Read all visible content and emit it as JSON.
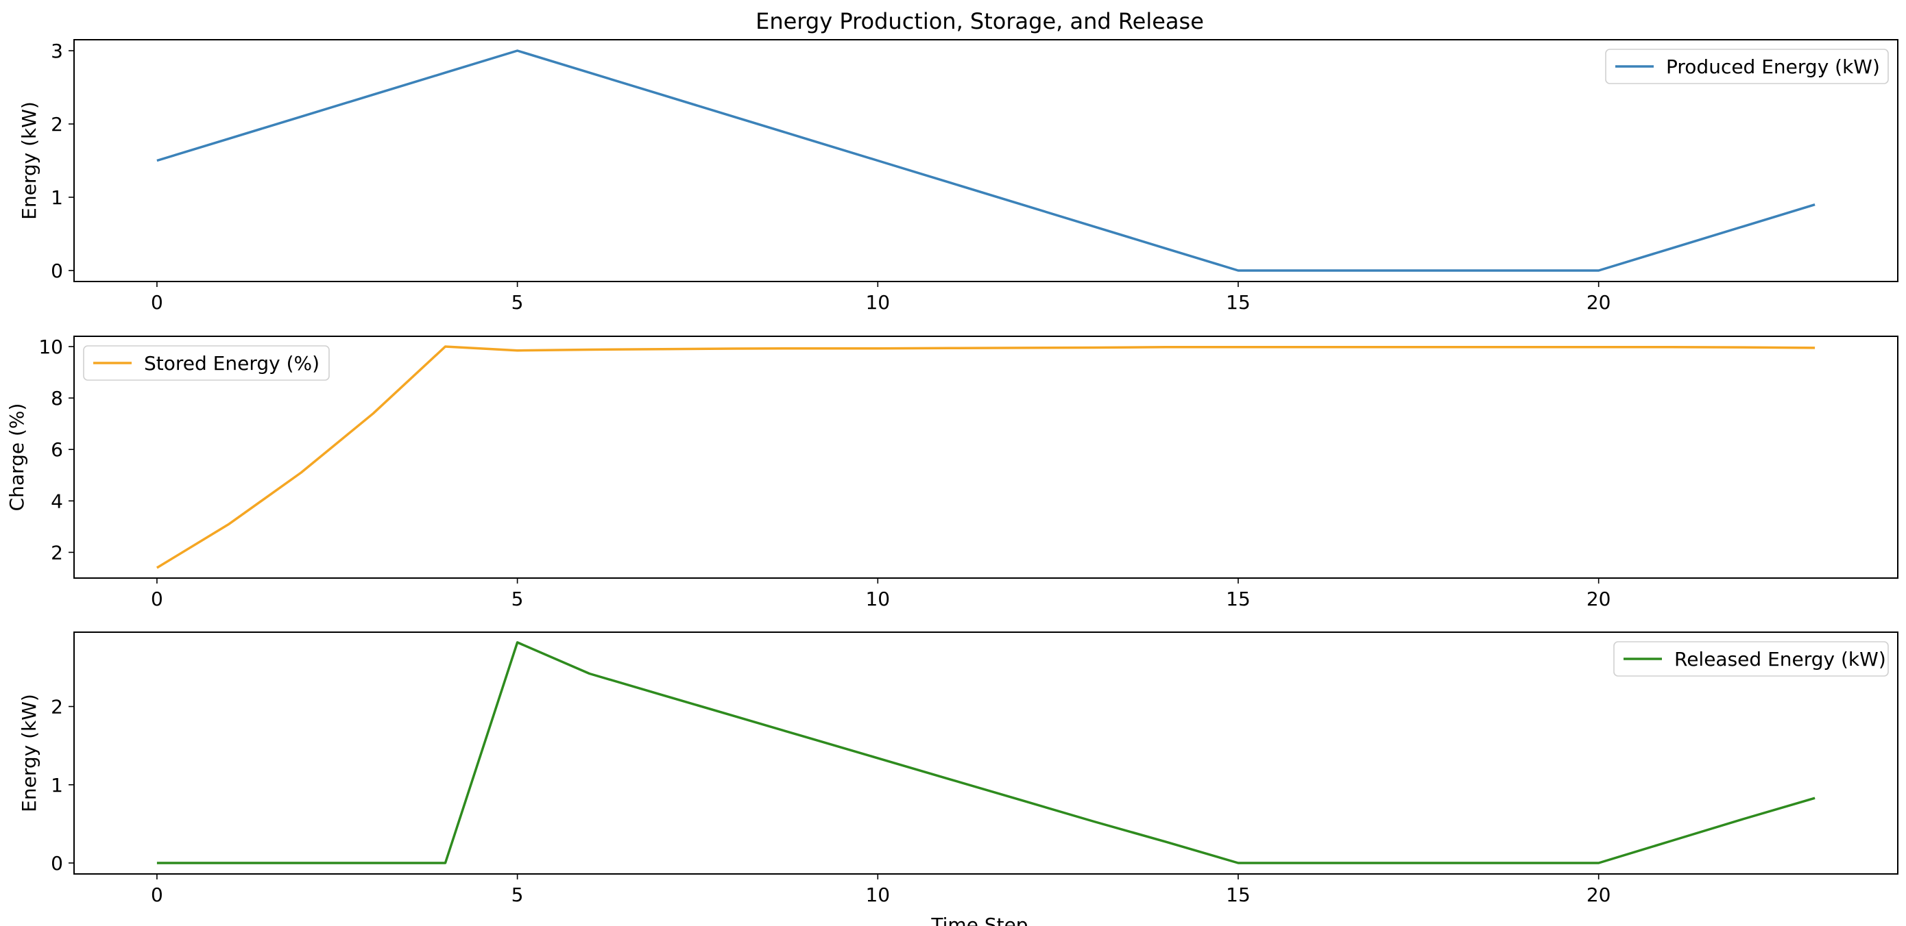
{
  "title": "Energy Production, Storage, and Release",
  "xlabel": "Time Step",
  "chart_data": [
    {
      "type": "line",
      "ylabel": "Energy (kW)",
      "xlim": [
        -1.15,
        24.15
      ],
      "ylim": [
        -0.15,
        3.15
      ],
      "xticks": [
        0,
        5,
        10,
        15,
        20
      ],
      "yticks": [
        0,
        1,
        2,
        3
      ],
      "legend_position": "top-right",
      "grid": false,
      "series": [
        {
          "name": "Produced Energy (kW)",
          "color": "#3b82b9",
          "x": [
            0,
            1,
            2,
            3,
            4,
            5,
            6,
            7,
            8,
            9,
            10,
            11,
            12,
            13,
            14,
            15,
            16,
            17,
            18,
            19,
            20,
            21,
            22,
            23
          ],
          "values": [
            1.5,
            1.8,
            2.1,
            2.4,
            2.7,
            3.0,
            2.7,
            2.4,
            2.1,
            1.8,
            1.5,
            1.2,
            0.9,
            0.6,
            0.3,
            0,
            0,
            0,
            0,
            0,
            0,
            0.3,
            0.6,
            0.9
          ]
        }
      ]
    },
    {
      "type": "line",
      "ylabel": "Charge (%)",
      "xlim": [
        -1.15,
        24.15
      ],
      "ylim": [
        1.0,
        10.4
      ],
      "xticks": [
        0,
        5,
        10,
        15,
        20
      ],
      "yticks": [
        2,
        4,
        6,
        8,
        10
      ],
      "legend_position": "top-left",
      "grid": false,
      "series": [
        {
          "name": "Stored Energy (%)",
          "color": "#f5a623",
          "x": [
            0,
            1,
            2,
            3,
            4,
            5,
            6,
            7,
            8,
            9,
            10,
            11,
            12,
            13,
            14,
            15,
            16,
            17,
            18,
            19,
            20,
            21,
            22,
            23
          ],
          "values": [
            1.4,
            3.1,
            5.1,
            7.4,
            10.0,
            9.85,
            9.88,
            9.9,
            9.92,
            9.93,
            9.93,
            9.94,
            9.95,
            9.96,
            9.98,
            9.98,
            9.98,
            9.98,
            9.98,
            9.98,
            9.98,
            9.98,
            9.97,
            9.95
          ]
        }
      ]
    },
    {
      "type": "line",
      "ylabel": "Energy (kW)",
      "xlim": [
        -1.15,
        24.15
      ],
      "ylim": [
        -0.14,
        2.95
      ],
      "xticks": [
        0,
        5,
        10,
        15,
        20
      ],
      "yticks": [
        0,
        1,
        2
      ],
      "legend_position": "top-right",
      "grid": false,
      "series": [
        {
          "name": "Released Energy (kW)",
          "color": "#2e8b1e",
          "x": [
            0,
            1,
            2,
            3,
            4,
            5,
            6,
            7,
            8,
            9,
            10,
            11,
            12,
            13,
            14,
            15,
            16,
            17,
            18,
            19,
            20,
            21,
            22,
            23
          ],
          "values": [
            0,
            0,
            0,
            0,
            0,
            2.82,
            2.42,
            2.15,
            1.88,
            1.61,
            1.34,
            1.07,
            0.8,
            0.53,
            0.27,
            0,
            0,
            0,
            0,
            0,
            0,
            0.28,
            0.56,
            0.83
          ]
        }
      ]
    }
  ]
}
